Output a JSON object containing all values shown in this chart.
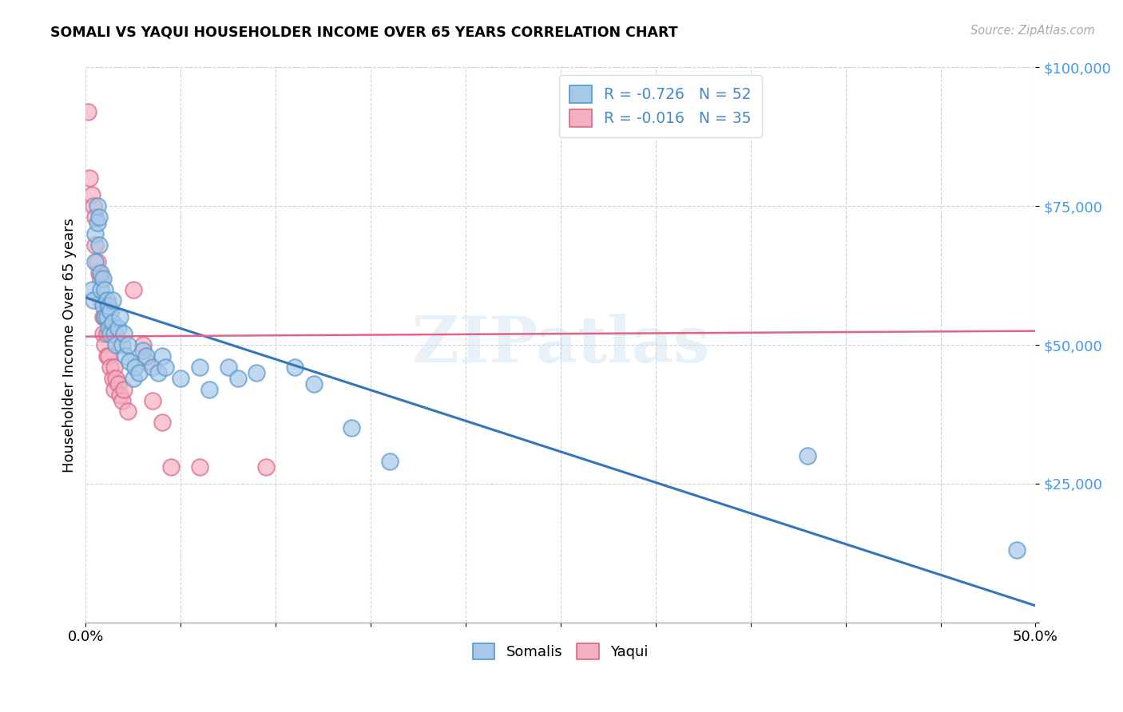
{
  "title": "SOMALI VS YAQUI HOUSEHOLDER INCOME OVER 65 YEARS CORRELATION CHART",
  "source": "Source: ZipAtlas.com",
  "ylabel": "Householder Income Over 65 years",
  "xlim": [
    0.0,
    0.5
  ],
  "ylim": [
    0,
    100000
  ],
  "yticks": [
    0,
    25000,
    50000,
    75000,
    100000
  ],
  "ytick_labels": [
    "",
    "$25,000",
    "$50,000",
    "$75,000",
    "$100,000"
  ],
  "xtick_vals": [
    0.0,
    0.05,
    0.1,
    0.15,
    0.2,
    0.25,
    0.3,
    0.35,
    0.4,
    0.45,
    0.5
  ],
  "xtick_labels": [
    "0.0%",
    "",
    "",
    "",
    "",
    "",
    "",
    "",
    "",
    "",
    "50.0%"
  ],
  "watermark": "ZIPatlas",
  "legend_entries": [
    {
      "label": "R = -0.726   N = 52",
      "color": "#a8c4e0"
    },
    {
      "label": "R = -0.016   N = 35",
      "color": "#f4a8b8"
    }
  ],
  "bottom_legend": [
    "Somalis",
    "Yaqui"
  ],
  "somali_color": "#a8c8e8",
  "yaqui_color": "#f4b0c0",
  "somali_edge_color": "#5599cc",
  "yaqui_edge_color": "#dd6688",
  "somali_line_color": "#3377bb",
  "yaqui_line_color": "#dd6688",
  "somali_points": [
    [
      0.003,
      60000
    ],
    [
      0.004,
      58000
    ],
    [
      0.005,
      65000
    ],
    [
      0.005,
      70000
    ],
    [
      0.006,
      72000
    ],
    [
      0.006,
      75000
    ],
    [
      0.007,
      73000
    ],
    [
      0.007,
      68000
    ],
    [
      0.008,
      63000
    ],
    [
      0.008,
      60000
    ],
    [
      0.009,
      57000
    ],
    [
      0.009,
      62000
    ],
    [
      0.01,
      55000
    ],
    [
      0.01,
      60000
    ],
    [
      0.011,
      58000
    ],
    [
      0.011,
      55000
    ],
    [
      0.012,
      57000
    ],
    [
      0.012,
      53000
    ],
    [
      0.013,
      56000
    ],
    [
      0.013,
      52000
    ],
    [
      0.014,
      58000
    ],
    [
      0.014,
      54000
    ],
    [
      0.015,
      52000
    ],
    [
      0.016,
      50000
    ],
    [
      0.017,
      53000
    ],
    [
      0.018,
      55000
    ],
    [
      0.019,
      50000
    ],
    [
      0.02,
      52000
    ],
    [
      0.021,
      48000
    ],
    [
      0.022,
      50000
    ],
    [
      0.023,
      47000
    ],
    [
      0.025,
      44000
    ],
    [
      0.026,
      46000
    ],
    [
      0.028,
      45000
    ],
    [
      0.03,
      49000
    ],
    [
      0.032,
      48000
    ],
    [
      0.035,
      46000
    ],
    [
      0.038,
      45000
    ],
    [
      0.04,
      48000
    ],
    [
      0.042,
      46000
    ],
    [
      0.05,
      44000
    ],
    [
      0.06,
      46000
    ],
    [
      0.065,
      42000
    ],
    [
      0.075,
      46000
    ],
    [
      0.08,
      44000
    ],
    [
      0.09,
      45000
    ],
    [
      0.11,
      46000
    ],
    [
      0.12,
      43000
    ],
    [
      0.14,
      35000
    ],
    [
      0.16,
      29000
    ],
    [
      0.38,
      30000
    ],
    [
      0.49,
      13000
    ]
  ],
  "yaqui_points": [
    [
      0.001,
      92000
    ],
    [
      0.002,
      80000
    ],
    [
      0.003,
      77000
    ],
    [
      0.004,
      75000
    ],
    [
      0.005,
      73000
    ],
    [
      0.005,
      68000
    ],
    [
      0.006,
      65000
    ],
    [
      0.007,
      63000
    ],
    [
      0.008,
      62000
    ],
    [
      0.008,
      58000
    ],
    [
      0.009,
      55000
    ],
    [
      0.009,
      52000
    ],
    [
      0.01,
      55000
    ],
    [
      0.01,
      50000
    ],
    [
      0.011,
      52000
    ],
    [
      0.011,
      48000
    ],
    [
      0.012,
      48000
    ],
    [
      0.013,
      46000
    ],
    [
      0.014,
      44000
    ],
    [
      0.015,
      46000
    ],
    [
      0.015,
      42000
    ],
    [
      0.016,
      44000
    ],
    [
      0.017,
      43000
    ],
    [
      0.018,
      41000
    ],
    [
      0.019,
      40000
    ],
    [
      0.02,
      42000
    ],
    [
      0.022,
      38000
    ],
    [
      0.025,
      60000
    ],
    [
      0.03,
      50000
    ],
    [
      0.032,
      47000
    ],
    [
      0.035,
      40000
    ],
    [
      0.04,
      36000
    ],
    [
      0.045,
      28000
    ],
    [
      0.06,
      28000
    ],
    [
      0.095,
      28000
    ]
  ],
  "somali_trendline": [
    [
      0.0,
      58500
    ],
    [
      0.5,
      3000
    ]
  ],
  "yaqui_trendline": [
    [
      0.0,
      51500
    ],
    [
      0.5,
      52500
    ]
  ]
}
